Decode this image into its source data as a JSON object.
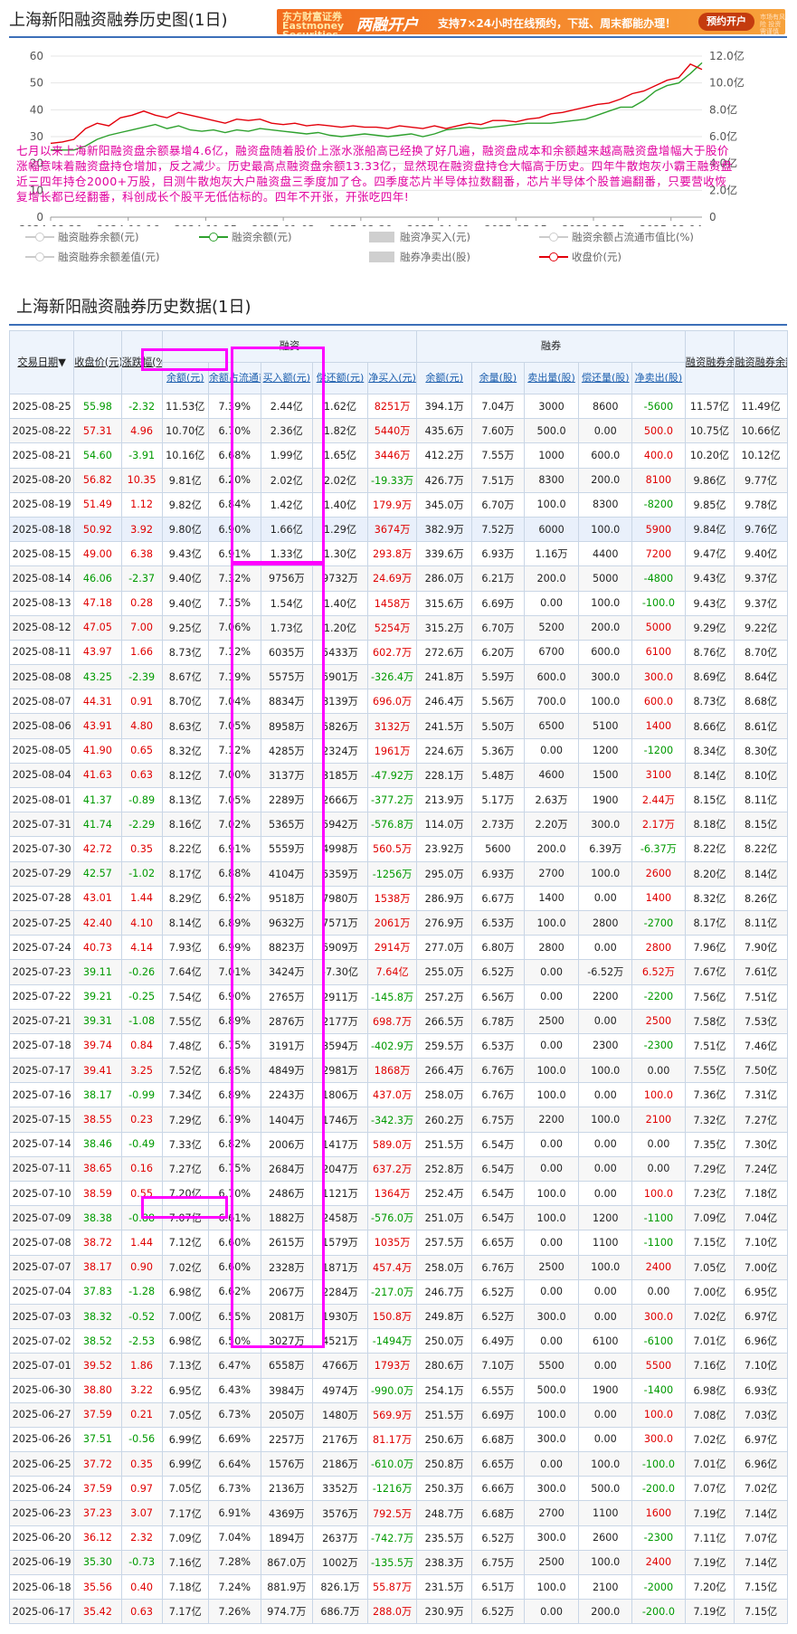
{
  "header": {
    "title": "上海新阳融资融券历史图(1日)",
    "banner": {
      "brand": "东方财富证券 Eastmoney Securities",
      "headline": "两融开户",
      "text": "支持7×24小时在线预约，下班、周末都能办理！",
      "button": "预约开户",
      "fine_print": "市场有风险 投资需谨慎"
    }
  },
  "chart_data": {
    "type": "line",
    "x_ticks": [
      "2024-08-28",
      "2024-10-16",
      "2024-11-25",
      "2025-01-03",
      "2025-02-20",
      "2025-04-01",
      "2025-05-15",
      "2025-06-25",
      "2025-08-04"
    ],
    "y_left_ticks": [
      "0",
      "10",
      "20",
      "30",
      "40",
      "50",
      "60"
    ],
    "y_right_ticks": [
      "0",
      "2.0亿",
      "4.0亿",
      "6.0亿",
      "8.0亿",
      "10.0亿",
      "12.0亿"
    ],
    "ylim_left": [
      0,
      60
    ],
    "ylim_right": [
      0,
      12
    ],
    "colors": {
      "price": "#e3000b",
      "balance": "#2ea12e"
    },
    "series": [
      {
        "name": "收盘价(元)",
        "axis": "left",
        "values": [
          27.5,
          28,
          29,
          33,
          35,
          34,
          37,
          38,
          39.5,
          38,
          37,
          39,
          38,
          37,
          36,
          35,
          36.5,
          36,
          36.5,
          35,
          34.5,
          35,
          34,
          34.5,
          34,
          33.5,
          34,
          33.5,
          33.5,
          33,
          34,
          33.5,
          33,
          34,
          33,
          34,
          35,
          34.5,
          36,
          36,
          35.5,
          36.5,
          37,
          38.5,
          39,
          40,
          41,
          42,
          42.5,
          44,
          46,
          47,
          49,
          51,
          52,
          57,
          55
        ]
      },
      {
        "name": "融资余额(元)",
        "axis": "right",
        "values": [
          5.0,
          5.0,
          5.0,
          5.3,
          5.8,
          6.1,
          6.3,
          6.5,
          6.7,
          6.9,
          6.6,
          6.8,
          6.5,
          6.4,
          6.5,
          6.3,
          6.5,
          6.4,
          6.6,
          6.5,
          6.4,
          6.3,
          6.2,
          6.3,
          6.1,
          6.0,
          6.1,
          6.2,
          6.1,
          6.0,
          6.1,
          6.2,
          6.0,
          6.2,
          6.5,
          6.6,
          6.7,
          6.6,
          6.7,
          6.8,
          6.9,
          7.0,
          7.0,
          7.0,
          7.1,
          7.2,
          7.3,
          7.6,
          7.9,
          8.2,
          8.2,
          8.7,
          9.4,
          9.8,
          10.0,
          10.7,
          11.5
        ]
      }
    ]
  },
  "annotation": "七月以来上海新阳融资盘余额暴增4.6亿，融资盘随着股价上涨水涨船高已经换了好几遍，融资盘成本和余额越来越高融资盘增幅大于股价涨幅意味着融资盘持仓增加，反之减少。历史最高点融资盘余额13.33亿，显然现在融资盘持仓大幅高于历史。四年牛散炮灰小霸王融资盘近三四年持仓2000+万股，目测牛散炮灰大户融资盘三季度加了仓。四季度芯片半导体拉数翻番，芯片半导体个股普遍翻番，只要营收恢复增长都已经翻番，科创成长个股平无低估标的。四年不开张，开张吃四年!",
  "legend": [
    "融资融券余额(元)",
    "融资余额(元)",
    "融资净买入(元)",
    "融资余额占流通市值比(%)",
    "融资融券余额差值(元)",
    "融券净卖出(股)",
    "收盘价(元)"
  ],
  "table": {
    "title": "上海新阳融资融券历史数据(1日)",
    "group_headers": [
      "融资",
      "融券"
    ],
    "headers": [
      "交易日期",
      "收盘价(元)",
      "涨跌幅(%)",
      "余额(元)",
      "余额占流通市值比",
      "买入额(元)",
      "偿还额(元)",
      "净买入(元)",
      "余额(元)",
      "余量(股)",
      "卖出量(股)",
      "偿还量(股)",
      "净卖出(股)",
      "融资融券余额(元)",
      "融资融券余额差值(元)"
    ],
    "rows": [
      [
        "2025-08-25",
        "55.98",
        "-2.32",
        "11.53亿",
        "7.39%",
        "2.44亿",
        "1.62亿",
        "8251万",
        "394.1万",
        "7.04万",
        "3000",
        "8600",
        "-5600",
        "11.57亿",
        "11.49亿"
      ],
      [
        "2025-08-22",
        "57.31",
        "4.96",
        "10.70亿",
        "6.70%",
        "2.36亿",
        "1.82亿",
        "5440万",
        "435.6万",
        "7.60万",
        "500.0",
        "0.00",
        "500.0",
        "10.75亿",
        "10.66亿"
      ],
      [
        "2025-08-21",
        "54.60",
        "-3.91",
        "10.16亿",
        "6.68%",
        "1.99亿",
        "1.65亿",
        "3446万",
        "412.2万",
        "7.55万",
        "1000",
        "600.0",
        "400.0",
        "10.20亿",
        "10.12亿"
      ],
      [
        "2025-08-20",
        "56.82",
        "10.35",
        "9.81亿",
        "6.20%",
        "2.02亿",
        "2.02亿",
        "-19.33万",
        "426.7万",
        "7.51万",
        "8300",
        "200.0",
        "8100",
        "9.86亿",
        "9.77亿"
      ],
      [
        "2025-08-19",
        "51.49",
        "1.12",
        "9.82亿",
        "6.84%",
        "1.42亿",
        "1.40亿",
        "179.9万",
        "345.0万",
        "6.70万",
        "100.0",
        "8300",
        "-8200",
        "9.85亿",
        "9.78亿"
      ],
      [
        "2025-08-18",
        "50.92",
        "3.92",
        "9.80亿",
        "6.90%",
        "1.66亿",
        "1.29亿",
        "3674万",
        "382.9万",
        "7.52万",
        "6000",
        "100.0",
        "5900",
        "9.84亿",
        "9.76亿"
      ],
      [
        "2025-08-15",
        "49.00",
        "6.38",
        "9.43亿",
        "6.91%",
        "1.33亿",
        "1.30亿",
        "293.8万",
        "339.6万",
        "6.93万",
        "1.16万",
        "4400",
        "7200",
        "9.47亿",
        "9.40亿"
      ],
      [
        "2025-08-14",
        "46.06",
        "-2.37",
        "9.40亿",
        "7.32%",
        "9756万",
        "9732万",
        "24.69万",
        "286.0万",
        "6.21万",
        "200.0",
        "5000",
        "-4800",
        "9.43亿",
        "9.37亿"
      ],
      [
        "2025-08-13",
        "47.18",
        "0.28",
        "9.40亿",
        "7.15%",
        "1.54亿",
        "1.40亿",
        "1458万",
        "315.6万",
        "6.69万",
        "0.00",
        "100.0",
        "-100.0",
        "9.43亿",
        "9.37亿"
      ],
      [
        "2025-08-12",
        "47.05",
        "7.00",
        "9.25亿",
        "7.06%",
        "1.73亿",
        "1.20亿",
        "5254万",
        "315.2万",
        "6.70万",
        "5200",
        "200.0",
        "5000",
        "9.29亿",
        "9.22亿"
      ],
      [
        "2025-08-11",
        "43.97",
        "1.66",
        "8.73亿",
        "7.12%",
        "6035万",
        "5433万",
        "602.7万",
        "272.6万",
        "6.20万",
        "6700",
        "600.0",
        "6100",
        "8.76亿",
        "8.70亿"
      ],
      [
        "2025-08-08",
        "43.25",
        "-2.39",
        "8.67亿",
        "7.19%",
        "5575万",
        "5901万",
        "-326.4万",
        "241.8万",
        "5.59万",
        "600.0",
        "300.0",
        "300.0",
        "8.69亿",
        "8.64亿"
      ],
      [
        "2025-08-07",
        "44.31",
        "0.91",
        "8.70亿",
        "7.04%",
        "8834万",
        "8139万",
        "696.0万",
        "246.4万",
        "5.56万",
        "700.0",
        "100.0",
        "600.0",
        "8.73亿",
        "8.68亿"
      ],
      [
        "2025-08-06",
        "43.91",
        "4.80",
        "8.63亿",
        "7.05%",
        "8958万",
        "5826万",
        "3132万",
        "241.5万",
        "5.50万",
        "6500",
        "5100",
        "1400",
        "8.66亿",
        "8.61亿"
      ],
      [
        "2025-08-05",
        "41.90",
        "0.65",
        "8.32亿",
        "7.12%",
        "4285万",
        "2324万",
        "1961万",
        "224.6万",
        "5.36万",
        "0.00",
        "1200",
        "-1200",
        "8.34亿",
        "8.30亿"
      ],
      [
        "2025-08-04",
        "41.63",
        "0.63",
        "8.12亿",
        "7.00%",
        "3137万",
        "3185万",
        "-47.92万",
        "228.1万",
        "5.48万",
        "4600",
        "1500",
        "3100",
        "8.14亿",
        "8.10亿"
      ],
      [
        "2025-08-01",
        "41.37",
        "-0.89",
        "8.13亿",
        "7.05%",
        "2289万",
        "2666万",
        "-377.2万",
        "213.9万",
        "5.17万",
        "2.63万",
        "1900",
        "2.44万",
        "8.15亿",
        "8.11亿"
      ],
      [
        "2025-07-31",
        "41.74",
        "-2.29",
        "8.16亿",
        "7.02%",
        "5365万",
        "5942万",
        "-576.8万",
        "114.0万",
        "2.73万",
        "2.20万",
        "300.0",
        "2.17万",
        "8.18亿",
        "8.15亿"
      ],
      [
        "2025-07-30",
        "42.72",
        "0.35",
        "8.22亿",
        "6.91%",
        "5559万",
        "4998万",
        "560.5万",
        "23.92万",
        "5600",
        "200.0",
        "6.39万",
        "-6.37万",
        "8.22亿",
        "8.22亿"
      ],
      [
        "2025-07-29",
        "42.57",
        "-1.02",
        "8.17亿",
        "6.88%",
        "4104万",
        "5359万",
        "-1256万",
        "295.0万",
        "6.93万",
        "2700",
        "100.0",
        "2600",
        "8.20亿",
        "8.14亿"
      ],
      [
        "2025-07-28",
        "43.01",
        "1.44",
        "8.29亿",
        "6.92%",
        "9518万",
        "7980万",
        "1538万",
        "286.9万",
        "6.67万",
        "1400",
        "0.00",
        "1400",
        "8.32亿",
        "8.26亿"
      ],
      [
        "2025-07-25",
        "42.40",
        "4.10",
        "8.14亿",
        "6.89%",
        "9632万",
        "7571万",
        "2061万",
        "276.9万",
        "6.53万",
        "100.0",
        "2800",
        "-2700",
        "8.17亿",
        "8.11亿"
      ],
      [
        "2025-07-24",
        "40.73",
        "4.14",
        "7.93亿",
        "6.99%",
        "8823万",
        "5909万",
        "2914万",
        "277.0万",
        "6.80万",
        "2800",
        "0.00",
        "2800",
        "7.96亿",
        "7.90亿"
      ],
      [
        "2025-07-23",
        "39.11",
        "-0.26",
        "7.64亿",
        "7.01%",
        "3424万",
        "-7.30亿",
        "7.64亿",
        "255.0万",
        "6.52万",
        "0.00",
        "-6.52万",
        "6.52万",
        "7.67亿",
        "7.61亿"
      ],
      [
        "2025-07-22",
        "39.21",
        "-0.25",
        "7.54亿",
        "6.90%",
        "2765万",
        "2911万",
        "-145.8万",
        "257.2万",
        "6.56万",
        "0.00",
        "2200",
        "-2200",
        "7.56亿",
        "7.51亿"
      ],
      [
        "2025-07-21",
        "39.31",
        "-1.08",
        "7.55亿",
        "6.89%",
        "2876万",
        "2177万",
        "698.7万",
        "266.5万",
        "6.78万",
        "2500",
        "0.00",
        "2500",
        "7.58亿",
        "7.53亿"
      ],
      [
        "2025-07-18",
        "39.74",
        "0.84",
        "7.48亿",
        "6.75%",
        "3191万",
        "3594万",
        "-402.9万",
        "259.5万",
        "6.53万",
        "0.00",
        "2300",
        "-2300",
        "7.51亿",
        "7.46亿"
      ],
      [
        "2025-07-17",
        "39.41",
        "3.25",
        "7.52亿",
        "6.85%",
        "4849万",
        "2981万",
        "1868万",
        "266.4万",
        "6.76万",
        "100.0",
        "100.0",
        "0.00",
        "7.55亿",
        "7.50亿"
      ],
      [
        "2025-07-16",
        "38.17",
        "-0.99",
        "7.34亿",
        "6.89%",
        "2243万",
        "1806万",
        "437.0万",
        "258.0万",
        "6.76万",
        "100.0",
        "0.00",
        "100.0",
        "7.36亿",
        "7.31亿"
      ],
      [
        "2025-07-15",
        "38.55",
        "0.23",
        "7.29亿",
        "6.79%",
        "1404万",
        "1746万",
        "-342.3万",
        "260.2万",
        "6.75万",
        "2200",
        "100.0",
        "2100",
        "7.32亿",
        "7.27亿"
      ],
      [
        "2025-07-14",
        "38.46",
        "-0.49",
        "7.33亿",
        "6.82%",
        "2006万",
        "1417万",
        "589.0万",
        "251.5万",
        "6.54万",
        "0.00",
        "0.00",
        "0.00",
        "7.35亿",
        "7.30亿"
      ],
      [
        "2025-07-11",
        "38.65",
        "0.16",
        "7.27亿",
        "6.75%",
        "2684万",
        "2047万",
        "637.2万",
        "252.8万",
        "6.54万",
        "0.00",
        "0.00",
        "0.00",
        "7.29亿",
        "7.24亿"
      ],
      [
        "2025-07-10",
        "38.59",
        "0.55",
        "7.20亿",
        "6.70%",
        "2486万",
        "1121万",
        "1364万",
        "252.4万",
        "6.54万",
        "100.0",
        "0.00",
        "100.0",
        "7.23亿",
        "7.18亿"
      ],
      [
        "2025-07-09",
        "38.38",
        "-0.88",
        "7.07亿",
        "6.61%",
        "1882万",
        "2458万",
        "-576.0万",
        "251.0万",
        "6.54万",
        "100.0",
        "1200",
        "-1100",
        "7.09亿",
        "7.04亿"
      ],
      [
        "2025-07-08",
        "38.72",
        "1.44",
        "7.12亿",
        "6.60%",
        "2615万",
        "1579万",
        "1035万",
        "257.5万",
        "6.65万",
        "0.00",
        "1100",
        "-1100",
        "7.15亿",
        "7.10亿"
      ],
      [
        "2025-07-07",
        "38.17",
        "0.90",
        "7.02亿",
        "6.60%",
        "2328万",
        "1871万",
        "457.4万",
        "258.0万",
        "6.76万",
        "2500",
        "100.0",
        "2400",
        "7.05亿",
        "7.00亿"
      ],
      [
        "2025-07-04",
        "37.83",
        "-1.28",
        "6.98亿",
        "6.62%",
        "2067万",
        "2284万",
        "-217.0万",
        "246.7万",
        "6.52万",
        "0.00",
        "0.00",
        "0.00",
        "7.00亿",
        "6.95亿"
      ],
      [
        "2025-07-03",
        "38.32",
        "-0.52",
        "7.00亿",
        "6.55%",
        "2081万",
        "1930万",
        "150.8万",
        "249.8万",
        "6.52万",
        "300.0",
        "0.00",
        "300.0",
        "7.02亿",
        "6.97亿"
      ],
      [
        "2025-07-02",
        "38.52",
        "-2.53",
        "6.98亿",
        "6.50%",
        "3027万",
        "4521万",
        "-1494万",
        "250.0万",
        "6.49万",
        "0.00",
        "6100",
        "-6100",
        "7.01亿",
        "6.96亿"
      ],
      [
        "2025-07-01",
        "39.52",
        "1.86",
        "7.13亿",
        "6.47%",
        "6558万",
        "4766万",
        "1793万",
        "280.6万",
        "7.10万",
        "5500",
        "0.00",
        "5500",
        "7.16亿",
        "7.10亿"
      ],
      [
        "2025-06-30",
        "38.80",
        "3.22",
        "6.95亿",
        "6.43%",
        "3984万",
        "4974万",
        "-990.0万",
        "254.1万",
        "6.55万",
        "500.0",
        "1900",
        "-1400",
        "6.98亿",
        "6.93亿"
      ],
      [
        "2025-06-27",
        "37.59",
        "0.21",
        "7.05亿",
        "6.73%",
        "2050万",
        "1480万",
        "569.9万",
        "251.5万",
        "6.69万",
        "100.0",
        "0.00",
        "100.0",
        "7.08亿",
        "7.03亿"
      ],
      [
        "2025-06-26",
        "37.51",
        "-0.56",
        "6.99亿",
        "6.69%",
        "2257万",
        "2176万",
        "81.17万",
        "250.6万",
        "6.68万",
        "300.0",
        "0.00",
        "300.0",
        "7.02亿",
        "6.97亿"
      ],
      [
        "2025-06-25",
        "37.72",
        "0.35",
        "6.99亿",
        "6.64%",
        "1576万",
        "2186万",
        "-610.0万",
        "250.8万",
        "6.65万",
        "0.00",
        "100.0",
        "-100.0",
        "7.01亿",
        "6.96亿"
      ],
      [
        "2025-06-24",
        "37.59",
        "0.97",
        "7.05亿",
        "6.73%",
        "2136万",
        "3352万",
        "-1216万",
        "250.3万",
        "6.66万",
        "300.0",
        "500.0",
        "-200.0",
        "7.07亿",
        "7.02亿"
      ],
      [
        "2025-06-23",
        "37.23",
        "3.07",
        "7.17亿",
        "6.91%",
        "4369万",
        "3576万",
        "792.5万",
        "248.7万",
        "6.68万",
        "2700",
        "1100",
        "1600",
        "7.19亿",
        "7.14亿"
      ],
      [
        "2025-06-20",
        "36.12",
        "2.32",
        "7.09亿",
        "7.04%",
        "1894万",
        "2637万",
        "-742.7万",
        "235.5万",
        "6.52万",
        "300.0",
        "2600",
        "-2300",
        "7.11亿",
        "7.07亿"
      ],
      [
        "2025-06-19",
        "35.30",
        "-0.73",
        "7.16亿",
        "7.28%",
        "867.0万",
        "1002万",
        "-135.5万",
        "238.3万",
        "6.75万",
        "2500",
        "100.0",
        "2400",
        "7.19亿",
        "7.14亿"
      ],
      [
        "2025-06-18",
        "35.56",
        "0.40",
        "7.18亿",
        "7.24%",
        "881.9万",
        "826.1万",
        "55.87万",
        "231.5万",
        "6.51万",
        "100.0",
        "2100",
        "-2000",
        "7.20亿",
        "7.15亿"
      ],
      [
        "2025-06-17",
        "35.42",
        "0.63",
        "7.17亿",
        "7.26%",
        "974.7万",
        "686.7万",
        "288.0万",
        "230.9万",
        "6.52万",
        "0.00",
        "200.0",
        "-200.0",
        "7.19亿",
        "7.15亿"
      ]
    ]
  }
}
